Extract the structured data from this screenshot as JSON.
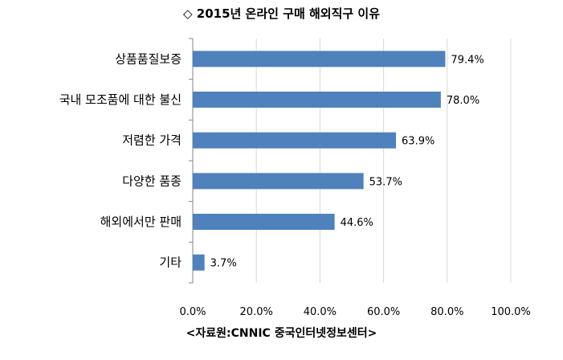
{
  "title": "◇ 2015년 온라인 구매 해외직구 이유",
  "source": "<자료원:CNNIC 중국인터넷정보센터>",
  "colors": {
    "bar": "#4f81bd",
    "grid": "#d9d9d9",
    "axis": "#868686"
  },
  "chart_data": {
    "type": "bar",
    "orientation": "horizontal",
    "title": "◇ 2015년 온라인 구매 해외직구 이유",
    "categories": [
      "상품품질보증",
      "국내 모조품에 대한 불신",
      "저렴한 가격",
      "다양한 품종",
      "해외에서만 판매",
      "기타"
    ],
    "values": [
      79.4,
      78.0,
      63.9,
      53.7,
      44.6,
      3.7
    ],
    "value_labels": [
      "79.4%",
      "78.0%",
      "63.9%",
      "53.7%",
      "44.6%",
      "3.7%"
    ],
    "xlim": [
      0,
      100
    ],
    "ticks": [
      0,
      20,
      40,
      60,
      80,
      100
    ],
    "tick_labels": [
      "0.0%",
      "20.0%",
      "40.0%",
      "60.0%",
      "80.0%",
      "100.0%"
    ],
    "grid": true,
    "legend": "none"
  }
}
